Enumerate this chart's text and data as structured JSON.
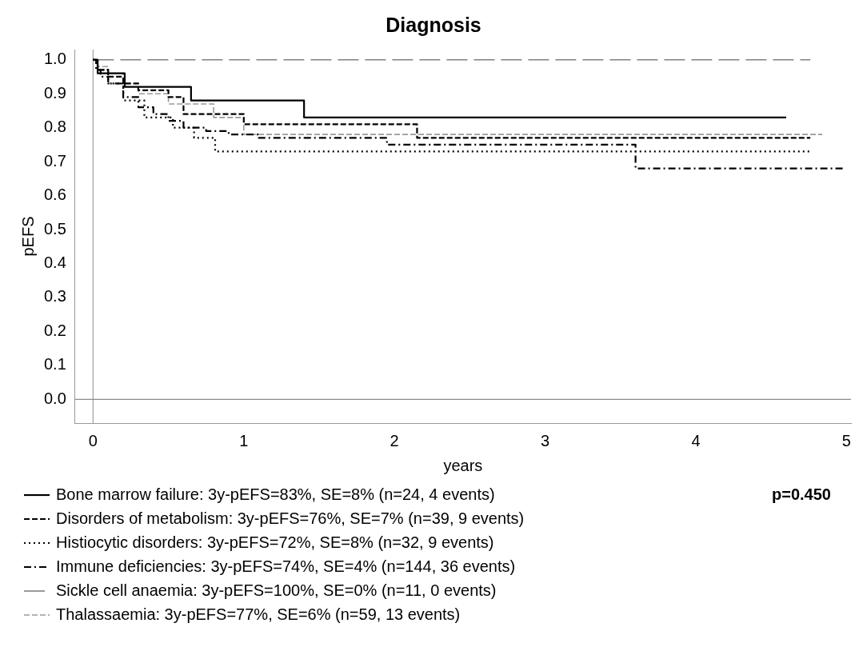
{
  "chart_data": {
    "type": "step",
    "title": "Diagnosis",
    "xlabel": "years",
    "ylabel": "pEFS",
    "xlim": [
      -0.12,
      5.03
    ],
    "ylim": [
      -0.07,
      1.03
    ],
    "xticks": [
      0,
      1,
      2,
      3,
      4,
      5
    ],
    "yticks": [
      {
        "value": 0,
        "label": "0.0"
      },
      {
        "value": 0.1,
        "label": "0.1"
      },
      {
        "value": 0.2,
        "label": "0.2"
      },
      {
        "value": 0.3,
        "label": "0.3"
      },
      {
        "value": 0.4,
        "label": "0.4"
      },
      {
        "value": 0.5,
        "label": "0.5"
      },
      {
        "value": 0.6,
        "label": "0.6"
      },
      {
        "value": 0.7,
        "label": "0.7"
      },
      {
        "value": 0.8,
        "label": "0.8"
      },
      {
        "value": 0.9,
        "label": "0.9"
      },
      {
        "value": 1,
        "label": "1.0"
      }
    ],
    "grid": false,
    "legend": "bottom",
    "marker": "none",
    "ref_lines": [
      {
        "axis": "x",
        "value": 0,
        "color": "#a6a6a6"
      },
      {
        "axis": "y",
        "value": 0,
        "color": "#8c8c8c"
      }
    ],
    "annotations": [
      "p=0.450"
    ],
    "series": [
      {
        "name": "Bone marrow failure: 3y-pEFS=83%, SE=8% (n=24, 4 events)",
        "color": "#000000",
        "line_style": "solid",
        "x": [
          0,
          0.03,
          0.21,
          0.65,
          1.4,
          4.6
        ],
        "values": [
          1,
          0.96,
          0.92,
          0.88,
          0.83,
          0.83
        ]
      },
      {
        "name": "Disorders of metabolism: 3y-pEFS=76%, SE=7% (n=39, 9 events)",
        "color": "#000000",
        "line_style": "dashed",
        "x": [
          0,
          0.03,
          0.1,
          0.2,
          0.3,
          0.5,
          0.6,
          1.0,
          2.15,
          4.76
        ],
        "values": [
          1,
          0.97,
          0.95,
          0.93,
          0.91,
          0.89,
          0.84,
          0.81,
          0.77,
          0.77
        ]
      },
      {
        "name": "Histiocytic disorders: 3y-pEFS=72%, SE=8% (n=32, 9 events)",
        "color": "#000000",
        "line_style": "dotted",
        "x": [
          0,
          0.03,
          0.1,
          0.2,
          0.34,
          0.53,
          0.67,
          0.81,
          4.76
        ],
        "values": [
          1,
          0.97,
          0.93,
          0.88,
          0.83,
          0.8,
          0.77,
          0.73,
          0.73
        ]
      },
      {
        "name": "Immune deficiencies: 3y-pEFS=74%, SE=4% (n=144, 36 events)",
        "color": "#000000",
        "line_style": "dashdot",
        "x": [
          0,
          0.02,
          0.05,
          0.1,
          0.2,
          0.3,
          0.4,
          0.5,
          0.6,
          0.75,
          0.9,
          1.1,
          1.95,
          3.6,
          4.98
        ],
        "values": [
          1,
          0.97,
          0.95,
          0.93,
          0.89,
          0.86,
          0.84,
          0.82,
          0.8,
          0.79,
          0.78,
          0.77,
          0.75,
          0.68,
          0.68
        ]
      },
      {
        "name": "Sickle cell anaemia: 3y-pEFS=100%, SE=0% (n=11, 0 events)",
        "color": "#808080",
        "line_style": "longdash",
        "x": [
          0,
          4.76
        ],
        "values": [
          1,
          1
        ]
      },
      {
        "name": "Thalassaemia: 3y-pEFS=77%, SE=6% (n=59, 13 events)",
        "color": "#999999",
        "line_style": "dashed",
        "x": [
          0,
          0.03,
          0.1,
          0.2,
          0.3,
          0.5,
          0.8,
          1.0,
          4.84
        ],
        "values": [
          1,
          0.98,
          0.96,
          0.93,
          0.9,
          0.87,
          0.83,
          0.78,
          0.78
        ]
      }
    ]
  }
}
